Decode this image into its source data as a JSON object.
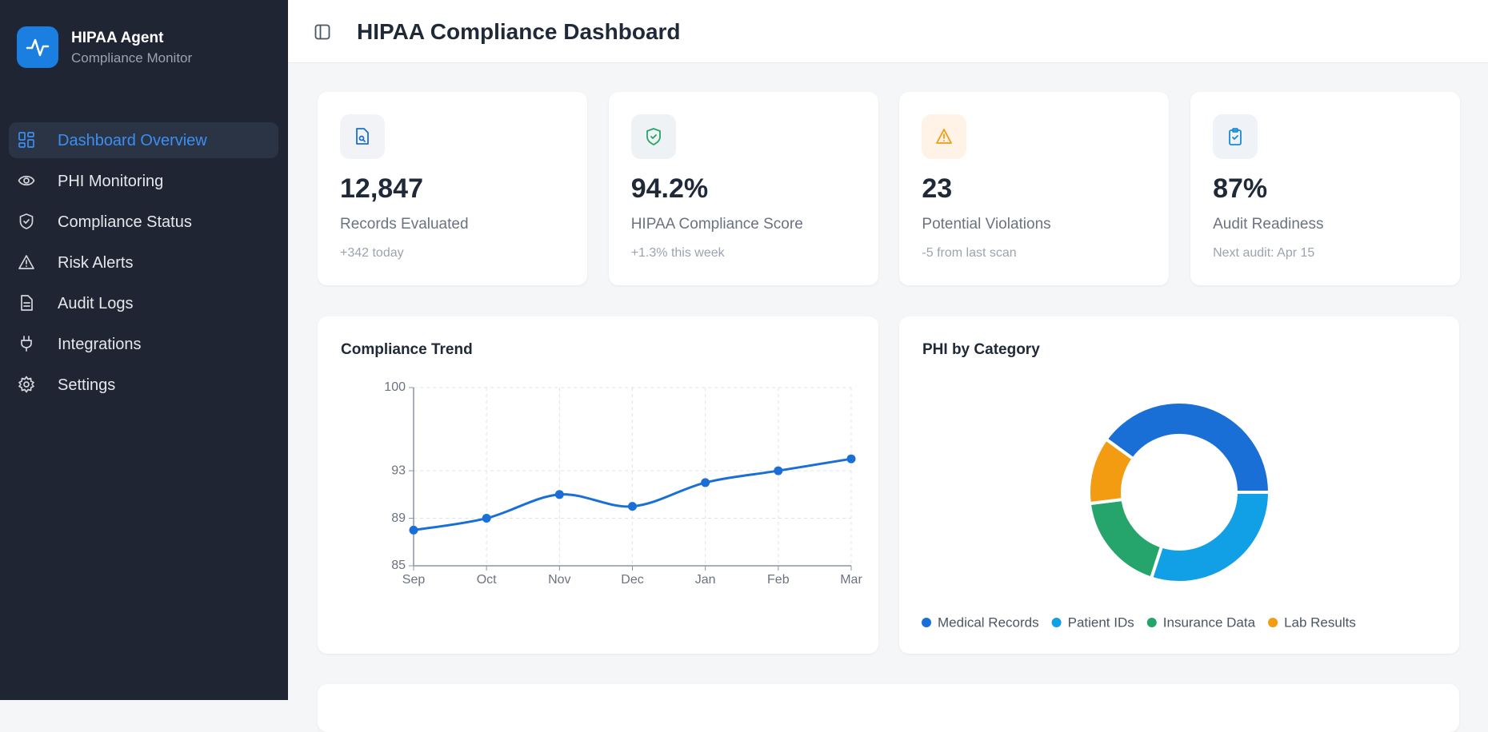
{
  "sidebar": {
    "app_name": "HIPAA Agent",
    "app_subtitle": "Compliance Monitor",
    "nav": [
      "Dashboard Overview",
      "PHI Monitoring",
      "Compliance Status",
      "Risk Alerts",
      "Audit Logs",
      "Integrations",
      "Settings"
    ]
  },
  "header": {
    "title": "HIPAA Compliance Dashboard"
  },
  "stats": [
    {
      "value": "12,847",
      "label": "Records Evaluated",
      "note": "+342 today"
    },
    {
      "value": "94.2%",
      "label": "HIPAA Compliance Score",
      "note": "+1.3% this week"
    },
    {
      "value": "23",
      "label": "Potential Violations",
      "note": "-5 from last scan"
    },
    {
      "value": "87%",
      "label": "Audit Readiness",
      "note": "Next audit: Apr 15"
    }
  ],
  "chart_data": [
    {
      "type": "line",
      "title": "Compliance Trend",
      "categories": [
        "Sep",
        "Oct",
        "Nov",
        "Dec",
        "Jan",
        "Feb",
        "Mar"
      ],
      "values": [
        88,
        89,
        91,
        90,
        92,
        93,
        94
      ],
      "color": "#1a6fd6",
      "ylim": [
        85,
        100
      ],
      "yticks": [
        85,
        89,
        93,
        100
      ],
      "grid": true
    },
    {
      "type": "donut",
      "title": "PHI by Category",
      "categories": [
        "Medical Records",
        "Patient IDs",
        "Insurance Data",
        "Lab Results"
      ],
      "values": [
        40,
        30,
        18,
        12
      ],
      "colors": [
        "#1a6fd6",
        "#11a0e6",
        "#25a46b",
        "#f39c12"
      ],
      "legend": "bottom"
    }
  ]
}
